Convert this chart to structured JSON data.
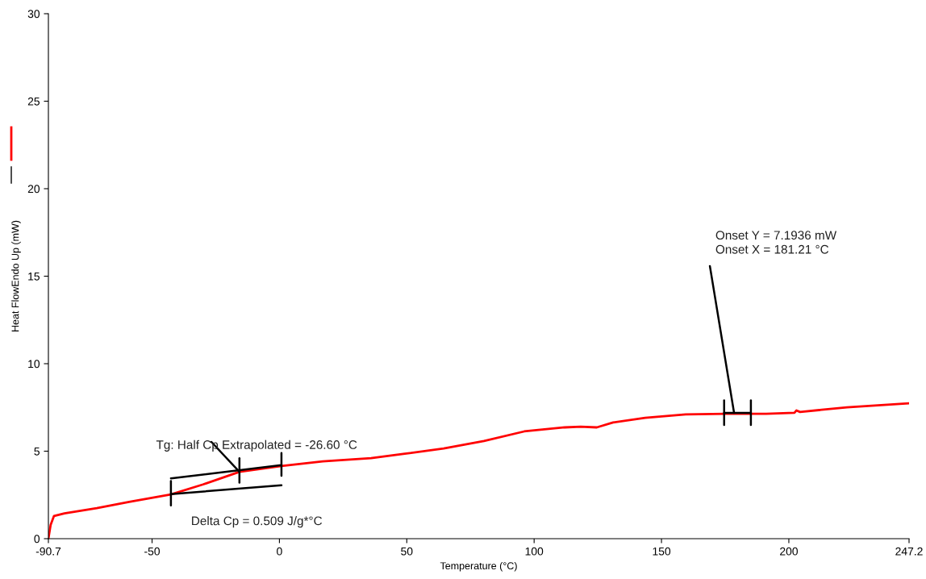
{
  "chart_data": {
    "type": "line",
    "xlabel": "Temperature (°C)",
    "ylabel": "Heat FlowEndo Up (mW)",
    "xlim": [
      -90.7,
      247.2
    ],
    "xticks": [
      -90.7,
      -50,
      0,
      50,
      100,
      150,
      200,
      247.2
    ],
    "ylim": [
      0,
      30
    ],
    "yticks": [
      0,
      5,
      10,
      15,
      20,
      25,
      30
    ],
    "grid": false,
    "legend": false,
    "series": [
      {
        "color": "#ff0000",
        "x": [
          -90.7,
          -89.8,
          -88.5,
          -84.4,
          -71.7,
          -59,
          -42.6,
          -30,
          -15.7,
          0.8,
          17,
          36,
          48.6,
          64.5,
          80.3,
          96.1,
          112,
          118.3,
          124.6,
          131,
          143.6,
          159.5,
          175.3,
          191.1,
          202.2,
          203,
          204.4,
          222.8,
          247.2
        ],
        "values": [
          0,
          0.8,
          1.3,
          1.45,
          1.75,
          2.1,
          2.53,
          3.1,
          3.82,
          4.15,
          4.42,
          4.6,
          4.84,
          5.16,
          5.58,
          6.13,
          6.36,
          6.4,
          6.36,
          6.64,
          6.91,
          7.1,
          7.14,
          7.14,
          7.19,
          7.33,
          7.24,
          7.51,
          7.74
        ]
      },
      {
        "color": "#000000",
        "x": [
          -42.6,
          0.8
        ],
        "values": [
          3.45,
          4.2
        ]
      },
      {
        "color": "#000000",
        "x": [
          -42.6,
          0.8
        ],
        "values": [
          2.55,
          3.05
        ]
      },
      {
        "color": "#000000",
        "x": [
          174.6,
          185.1
        ],
        "values": [
          7.19,
          7.19
        ]
      },
      {
        "color": "#000000",
        "x": [
          -42.6,
          -42.6
        ],
        "values": [
          1.9,
          3.3
        ]
      },
      {
        "color": "#000000",
        "x": [
          -15.7,
          -15.7
        ],
        "values": [
          3.2,
          4.6
        ]
      },
      {
        "color": "#000000",
        "x": [
          0.8,
          0.8
        ],
        "values": [
          3.6,
          4.9
        ]
      },
      {
        "color": "#000000",
        "x": [
          174.6,
          174.6
        ],
        "values": [
          6.5,
          7.9
        ]
      },
      {
        "color": "#000000",
        "x": [
          185.1,
          185.1
        ],
        "values": [
          6.5,
          7.9
        ]
      },
      {
        "color": "#000000",
        "x": [
          -26.7,
          -15.7
        ],
        "values": [
          5.53,
          3.82
        ]
      },
      {
        "color": "#000000",
        "x": [
          169,
          178.5
        ],
        "values": [
          15.58,
          7.19
        ]
      }
    ],
    "annotations": [
      "Tg: Half Cp Extrapolated = -26.60 °C",
      "Delta Cp = 0.509 J/g*°C",
      "Onset Y = 7.1936 mW\nOnset X = 181.21 °C"
    ]
  }
}
